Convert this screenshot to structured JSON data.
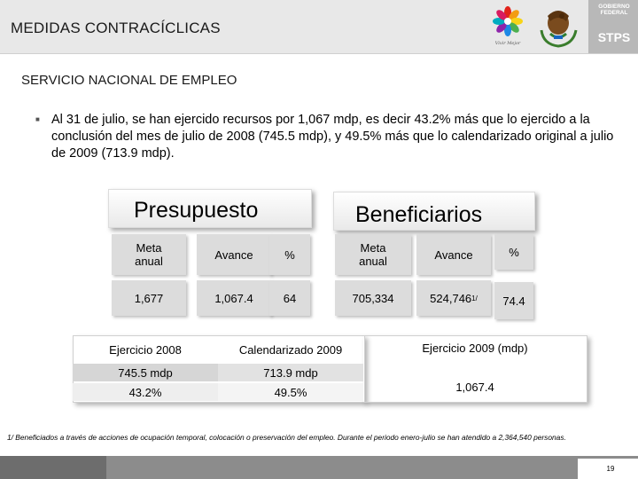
{
  "header": {
    "title": "MEDIDAS CONTRACÍCLICAS",
    "logo_caption": "Vivir Mejor",
    "gov_label": "GOBIERNO FEDERAL",
    "agency": "STPS"
  },
  "section": {
    "title": "SERVICIO NACIONAL DE EMPLEO",
    "bullet": "Al 31 de julio, se han ejercido recursos por 1,067 mdp, es decir 43.2% más que lo ejercido a la conclusión del mes de julio de 2008 (745.5 mdp), y 49.5% más que lo calendarizado original a julio de 2009 (713.9 mdp)."
  },
  "presupuesto": {
    "title": "Presupuesto",
    "headers": [
      "Meta anual",
      "Avance",
      "%"
    ],
    "values": [
      "1,677",
      "1,067.4",
      "64"
    ]
  },
  "beneficiarios": {
    "title": "Beneficiarios",
    "headers": [
      "Meta anual",
      "Avance",
      "%"
    ],
    "values": [
      "705,334",
      "524,746",
      "74.4"
    ],
    "footnote_mark": "1/"
  },
  "comparison": {
    "headers": [
      "Ejercicio 2008",
      "Calendarizado 2009",
      "Ejercicio 2009 (mdp)"
    ],
    "row1": [
      "745.5 mdp",
      "713.9 mdp"
    ],
    "row2": [
      "43.2%",
      "49.5%"
    ],
    "total_2009": "1,067.4"
  },
  "footnote": "1/ Beneficiados a través de acciones de ocupación temporal, colocación o preservación del empleo. Durante el periodo enero-julio se han atendido a 2,364,540 personas.",
  "page_number": "19",
  "colors": {
    "header_bg": "#e8e8e8",
    "cell_bg": "#dcdcdc",
    "footer_bg": "#8c8c8c"
  }
}
